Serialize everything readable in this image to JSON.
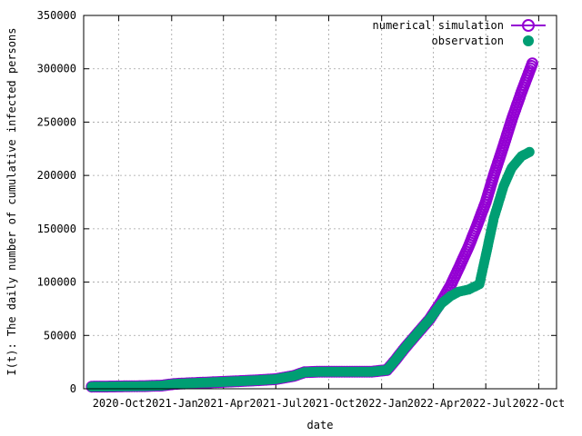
{
  "chart_data": {
    "type": "scatter",
    "xlabel": "date",
    "ylabel": "I(t): The daily number of cumulative infected persons",
    "ylim": [
      0,
      350000
    ],
    "xlim": [
      "2020-08-01",
      "2022-11-01"
    ],
    "grid": true,
    "legend_position": "top-right",
    "y_ticks": [
      "0",
      "50000",
      "100000",
      "150000",
      "200000",
      "250000",
      "300000",
      "350000"
    ],
    "x_ticks": [
      {
        "date": "2020-10-01",
        "label": "2020-Oct"
      },
      {
        "date": "2021-01-01",
        "label": "2021-Jan"
      },
      {
        "date": "2021-04-01",
        "label": "2021-Apr"
      },
      {
        "date": "2021-07-01",
        "label": "2021-Jul"
      },
      {
        "date": "2021-10-01",
        "label": "2021-Oct"
      },
      {
        "date": "2022-01-01",
        "label": "2022-Jan"
      },
      {
        "date": "2022-04-01",
        "label": "2022-Apr"
      },
      {
        "date": "2022-07-01",
        "label": "2022-Jul"
      },
      {
        "date": "2022-10-01",
        "label": "2022-Oct"
      }
    ],
    "series": [
      {
        "name": "numerical simulation",
        "color": "#9400d3",
        "marker": "open-circle",
        "points": [
          [
            "2020-08-15",
            2000
          ],
          [
            "2020-09-15",
            2100
          ],
          [
            "2020-10-15",
            2300
          ],
          [
            "2020-11-15",
            2500
          ],
          [
            "2020-12-15",
            3000
          ],
          [
            "2021-01-05",
            4500
          ],
          [
            "2021-02-01",
            5200
          ],
          [
            "2021-03-01",
            5800
          ],
          [
            "2021-04-01",
            6500
          ],
          [
            "2021-05-01",
            7200
          ],
          [
            "2021-06-01",
            8000
          ],
          [
            "2021-07-01",
            9000
          ],
          [
            "2021-08-01",
            12000
          ],
          [
            "2021-08-20",
            15500
          ],
          [
            "2021-09-15",
            16000
          ],
          [
            "2021-10-15",
            16000
          ],
          [
            "2021-11-15",
            16000
          ],
          [
            "2021-12-15",
            16000
          ],
          [
            "2022-01-10",
            17500
          ],
          [
            "2022-01-25",
            27000
          ],
          [
            "2022-02-10",
            38000
          ],
          [
            "2022-03-01",
            50000
          ],
          [
            "2022-03-25",
            65000
          ],
          [
            "2022-04-15",
            82000
          ],
          [
            "2022-05-01",
            97000
          ],
          [
            "2022-05-15",
            113000
          ],
          [
            "2022-06-01",
            133000
          ],
          [
            "2022-06-15",
            152000
          ],
          [
            "2022-07-01",
            175000
          ],
          [
            "2022-07-15",
            200000
          ],
          [
            "2022-08-01",
            228000
          ],
          [
            "2022-08-15",
            252000
          ],
          [
            "2022-09-01",
            278000
          ],
          [
            "2022-09-20",
            305000
          ]
        ]
      },
      {
        "name": "observation",
        "color": "#009e73",
        "marker": "filled-circle",
        "points": [
          [
            "2020-08-15",
            2000
          ],
          [
            "2020-09-15",
            2100
          ],
          [
            "2020-10-15",
            2300
          ],
          [
            "2020-11-15",
            2500
          ],
          [
            "2020-12-15",
            3000
          ],
          [
            "2021-01-05",
            4500
          ],
          [
            "2021-02-01",
            5200
          ],
          [
            "2021-03-01",
            5800
          ],
          [
            "2021-04-01",
            6500
          ],
          [
            "2021-05-01",
            7200
          ],
          [
            "2021-06-01",
            8000
          ],
          [
            "2021-07-01",
            9000
          ],
          [
            "2021-08-01",
            12000
          ],
          [
            "2021-08-20",
            15500
          ],
          [
            "2021-09-15",
            16000
          ],
          [
            "2021-10-15",
            16000
          ],
          [
            "2021-11-15",
            16000
          ],
          [
            "2021-12-15",
            16000
          ],
          [
            "2022-01-10",
            17500
          ],
          [
            "2022-01-25",
            27000
          ],
          [
            "2022-02-10",
            38000
          ],
          [
            "2022-03-01",
            50000
          ],
          [
            "2022-03-25",
            65000
          ],
          [
            "2022-04-15",
            80000
          ],
          [
            "2022-05-01",
            87000
          ],
          [
            "2022-05-15",
            91000
          ],
          [
            "2022-06-01",
            93000
          ],
          [
            "2022-06-20",
            98000
          ],
          [
            "2022-07-01",
            125000
          ],
          [
            "2022-07-15",
            160000
          ],
          [
            "2022-08-01",
            190000
          ],
          [
            "2022-08-15",
            207000
          ],
          [
            "2022-09-01",
            218000
          ],
          [
            "2022-09-15",
            222000
          ]
        ]
      }
    ]
  }
}
